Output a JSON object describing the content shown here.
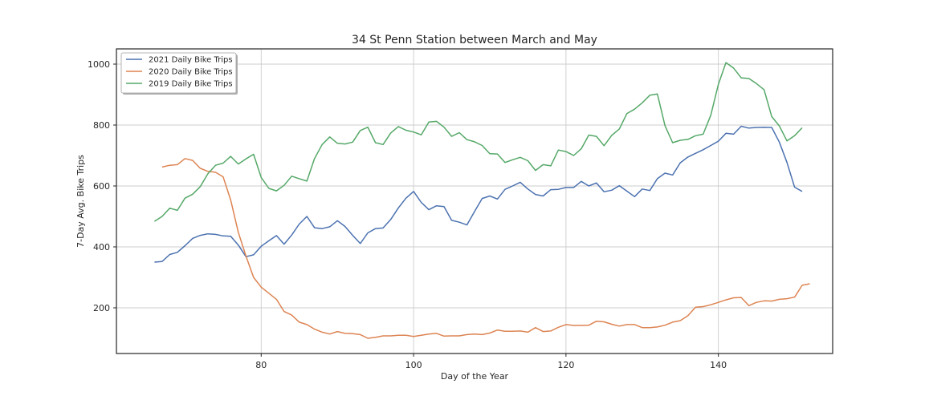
{
  "chart_data": {
    "type": "line",
    "title": "34 St Penn Station between March and May",
    "xlabel": "Day of the Year",
    "ylabel": "7-Day Avg. Bike Trips",
    "xlim": [
      61,
      155
    ],
    "ylim": [
      50,
      1050
    ],
    "xticks": [
      80,
      100,
      120,
      140
    ],
    "yticks": [
      200,
      400,
      600,
      800,
      1000
    ],
    "grid": true,
    "legend_position": "top-left",
    "series": [
      {
        "name": "2021 Daily Bike Trips",
        "color": "#4c72b0",
        "x": [
          66,
          67,
          68,
          69,
          70,
          71,
          72,
          73,
          74,
          75,
          76,
          77,
          78,
          79,
          80,
          81,
          82,
          83,
          84,
          85,
          86,
          87,
          88,
          89,
          90,
          91,
          92,
          93,
          94,
          95,
          96,
          97,
          98,
          99,
          100,
          101,
          102,
          103,
          104,
          105,
          106,
          107,
          108,
          109,
          110,
          111,
          112,
          113,
          114,
          115,
          116,
          117,
          118,
          119,
          120,
          121,
          122,
          123,
          124,
          125,
          126,
          127,
          128,
          129,
          130,
          131,
          132,
          133,
          134,
          135,
          136,
          137,
          138,
          139,
          140,
          141,
          142,
          143,
          144,
          145,
          146,
          147,
          148,
          149,
          150,
          151
        ],
        "y": [
          350,
          352,
          375,
          382,
          404,
          428,
          438,
          443,
          441,
          436,
          435,
          406,
          368,
          374,
          402,
          420,
          437,
          409,
          439,
          475,
          500,
          463,
          460,
          466,
          486,
          467,
          438,
          411,
          446,
          460,
          462,
          490,
          528,
          560,
          582,
          546,
          522,
          535,
          532,
          487,
          481,
          472,
          516,
          559,
          567,
          557,
          589,
          600,
          612,
          590,
          572,
          567,
          588,
          589,
          595,
          595,
          615,
          600,
          610,
          581,
          586,
          601,
          583,
          565,
          590,
          585,
          624,
          642,
          636,
          676,
          695,
          707,
          719,
          733,
          747,
          773,
          770,
          796,
          790,
          792,
          793,
          792,
          744,
          677,
          596,
          582
        ]
      },
      {
        "name": "2020 Daily Bike Trips",
        "color": "#dd8452",
        "x": [
          67,
          68,
          69,
          70,
          71,
          72,
          73,
          74,
          75,
          76,
          77,
          78,
          79,
          80,
          81,
          82,
          83,
          84,
          85,
          86,
          87,
          88,
          89,
          90,
          91,
          92,
          93,
          94,
          95,
          96,
          97,
          98,
          99,
          100,
          101,
          102,
          103,
          104,
          105,
          106,
          107,
          108,
          109,
          110,
          111,
          112,
          113,
          114,
          115,
          116,
          117,
          118,
          119,
          120,
          121,
          122,
          123,
          124,
          125,
          126,
          127,
          128,
          129,
          130,
          131,
          132,
          133,
          134,
          135,
          136,
          137,
          138,
          139,
          140,
          141,
          142,
          143,
          144,
          145,
          146,
          147,
          148,
          149,
          150,
          151,
          152
        ],
        "y": [
          662,
          668,
          670,
          690,
          684,
          658,
          648,
          645,
          630,
          554,
          448,
          370,
          300,
          268,
          248,
          228,
          188,
          176,
          153,
          145,
          130,
          120,
          114,
          122,
          116,
          115,
          112,
          100,
          103,
          108,
          108,
          110,
          110,
          106,
          110,
          114,
          116,
          107,
          108,
          108,
          112,
          114,
          112,
          117,
          127,
          123,
          123,
          124,
          120,
          135,
          122,
          124,
          136,
          145,
          142,
          142,
          143,
          156,
          154,
          146,
          140,
          145,
          145,
          135,
          135,
          137,
          143,
          153,
          158,
          174,
          202,
          204,
          210,
          218,
          226,
          233,
          234,
          207,
          218,
          223,
          222,
          228,
          230,
          235,
          274,
          279
        ]
      },
      {
        "name": "2019 Daily Bike Trips",
        "color": "#55a868",
        "x": [
          66,
          67,
          68,
          69,
          70,
          71,
          72,
          73,
          74,
          75,
          76,
          77,
          78,
          79,
          80,
          81,
          82,
          83,
          84,
          85,
          86,
          87,
          88,
          89,
          90,
          91,
          92,
          93,
          94,
          95,
          96,
          97,
          98,
          99,
          100,
          101,
          102,
          103,
          104,
          105,
          106,
          107,
          108,
          109,
          110,
          111,
          112,
          113,
          114,
          115,
          116,
          117,
          118,
          119,
          120,
          121,
          122,
          123,
          124,
          125,
          126,
          127,
          128,
          129,
          130,
          131,
          132,
          133,
          134,
          135,
          136,
          137,
          138,
          139,
          140,
          141,
          142,
          143,
          144,
          145,
          146,
          147,
          148,
          149,
          150,
          151
        ],
        "y": [
          484,
          500,
          527,
          520,
          560,
          573,
          598,
          640,
          668,
          675,
          697,
          672,
          689,
          704,
          628,
          592,
          584,
          602,
          632,
          624,
          616,
          690,
          736,
          761,
          740,
          738,
          744,
          782,
          793,
          742,
          736,
          774,
          795,
          783,
          777,
          768,
          810,
          812,
          793,
          763,
          775,
          752,
          745,
          733,
          706,
          705,
          677,
          686,
          694,
          683,
          651,
          670,
          666,
          718,
          713,
          700,
          722,
          767,
          763,
          732,
          766,
          787,
          838,
          852,
          873,
          898,
          902,
          798,
          742,
          750,
          753,
          765,
          770,
          832,
          934,
          1005,
          987,
          955,
          953,
          936,
          916,
          828,
          797,
          748,
          765,
          791
        ]
      }
    ]
  }
}
